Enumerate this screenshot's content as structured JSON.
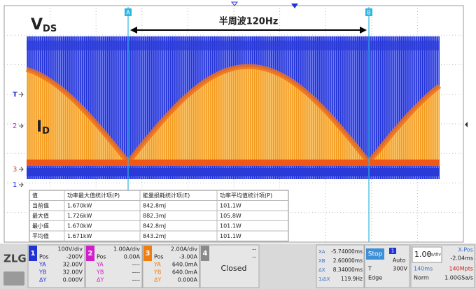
{
  "labels": {
    "vds": "V",
    "vds_sub": "DS",
    "id": "I",
    "id_sub": "D",
    "span": "半周波120Hz",
    "cursor_a": "A",
    "cursor_b": "B",
    "marker_t": "T",
    "marker_2": "2",
    "marker_3": "3",
    "marker_1": "1",
    "logo": "ZLG"
  },
  "table": {
    "header": [
      "值",
      "功率最大值统计项(P)",
      "能量损耗统计项(E)",
      "功率平均值统计项(P)"
    ],
    "rows": [
      [
        "当前值",
        "1.670kW",
        "842.8mJ",
        "101.1W"
      ],
      [
        "最大值",
        "1.726kW",
        "882.3mJ",
        "105.8W"
      ],
      [
        "最小值",
        "1.670kW",
        "842.8mJ",
        "101.1W"
      ],
      [
        "平均值",
        "1.671kW",
        "843.2mJ",
        "101.1W"
      ]
    ]
  },
  "channels": [
    {
      "num": "1",
      "scale": "100V/div",
      "rows": [
        [
          "Pos",
          "-200V"
        ],
        [
          "YA",
          "32.00V"
        ],
        [
          "YB",
          "32.00V"
        ],
        [
          "ΔY",
          "0.000V"
        ]
      ]
    },
    {
      "num": "2",
      "scale": "1.00A/div",
      "rows": [
        [
          "Pos",
          "0.00A"
        ],
        [
          "YA",
          "----"
        ],
        [
          "YB",
          "----"
        ],
        [
          "ΔY",
          "----"
        ]
      ]
    },
    {
      "num": "3",
      "scale": "2.00A/div",
      "rows": [
        [
          "Pos",
          "-3.00A"
        ],
        [
          "YA",
          "640.0mA"
        ],
        [
          "YB",
          "640.0mA"
        ],
        [
          "ΔY",
          "0.000A"
        ]
      ]
    }
  ],
  "channel4": {
    "num": "4",
    "lines": [
      "--",
      "--"
    ],
    "state": "Closed"
  },
  "cursors": [
    [
      "XA",
      "-5.74000ms"
    ],
    [
      "XB",
      "2.60000ms"
    ],
    [
      "ΔX",
      "8.34000ms"
    ],
    [
      "1/ΔX",
      "119.9Hz"
    ]
  ],
  "trigger": {
    "state": "Stop",
    "source": "1",
    "mode": "Auto",
    "type_label": "T",
    "level": "300V",
    "edge": "Edge"
  },
  "timebase": {
    "scale": "1.00",
    "unit": "ms/div",
    "xpos_label": "X-Pos",
    "xpos": "-2.04ms",
    "length": "140ms",
    "points": "140Mpts",
    "acq": "Norm",
    "rate": "1.00GSa/s"
  }
}
